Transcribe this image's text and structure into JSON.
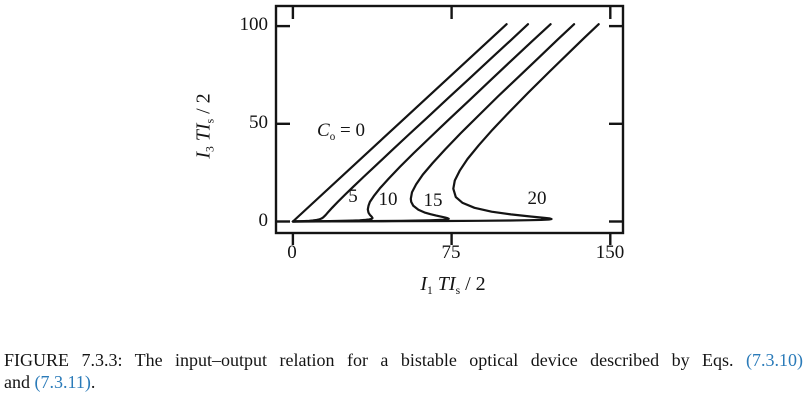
{
  "colors": {
    "ink": "#141414",
    "link": "#2b7bb9"
  },
  "chart_data": {
    "type": "line",
    "title": "",
    "xlabel": "I_1 / (T I_s / 2)",
    "ylabel": "I_3 / (T I_s / 2)",
    "xlabel_parts": {
      "num_base": "I",
      "num_sub": "1",
      "den_base": "TI",
      "den_sub": "s",
      "den_tail": " / 2"
    },
    "ylabel_parts": {
      "num_base": "I",
      "num_sub": "3",
      "den_base": "TI",
      "den_sub": "s",
      "den_tail": " / 2"
    },
    "xlim": [
      -8,
      156
    ],
    "ylim": [
      -5.9,
      110.3
    ],
    "xticks": [
      0,
      75,
      150
    ],
    "yticks": [
      0,
      50,
      100
    ],
    "xtick_labels": [
      "0",
      "75",
      "150"
    ],
    "ytick_labels": [
      "0",
      "50",
      "100"
    ],
    "grid": false,
    "legend_position": "inline-curve-labels",
    "curve_label_head": {
      "base": "C",
      "sub": "o",
      "eq": "= 0"
    },
    "curve_labels": [
      "5",
      "10",
      "15",
      "20"
    ],
    "series": [
      {
        "name": "C0 = 0",
        "C0": 0,
        "points": [
          [
            0,
            0
          ],
          [
            50.5,
            50.5
          ],
          [
            101,
            101
          ]
        ]
      },
      {
        "name": "C0 = 5",
        "C0": 5,
        "points": [
          [
            0,
            0
          ],
          [
            1.7,
            0.05
          ],
          [
            3.1,
            0.1
          ],
          [
            5.3,
            0.2
          ],
          [
            7.7,
            0.35
          ],
          [
            9.4,
            0.5
          ],
          [
            11.2,
            0.75
          ],
          [
            12.3,
            1
          ],
          [
            13.5,
            1.5
          ],
          [
            14.2,
            2
          ],
          [
            15.2,
            3
          ],
          [
            16,
            4
          ],
          [
            16.8,
            5
          ],
          [
            18.5,
            7
          ],
          [
            21.2,
            10
          ],
          [
            24.9,
            14
          ],
          [
            28.7,
            18
          ],
          [
            33.6,
            23
          ],
          [
            39.5,
            29
          ],
          [
            46.4,
            36
          ],
          [
            54.3,
            44
          ],
          [
            63.3,
            53
          ],
          [
            73.2,
            63
          ],
          [
            83.2,
            73
          ],
          [
            93.2,
            83
          ],
          [
            103.2,
            93
          ],
          [
            111.1,
            101
          ]
        ]
      },
      {
        "name": "C0 = 10",
        "C0": 10,
        "points": [
          [
            0,
            0
          ],
          [
            5.5,
            0.05
          ],
          [
            10.2,
            0.1
          ],
          [
            17.4,
            0.2
          ],
          [
            22.7,
            0.3
          ],
          [
            28.1,
            0.45
          ],
          [
            31.5,
            0.6
          ],
          [
            34.4,
            0.8
          ],
          [
            36,
            1
          ],
          [
            37.2,
            1.3
          ],
          [
            37.6,
            1.75
          ],
          [
            37.2,
            2.5
          ],
          [
            36.3,
            3.5
          ],
          [
            35.7,
            4.5
          ],
          [
            35.4,
            6.2
          ],
          [
            35.7,
            8
          ],
          [
            36.4,
            10
          ],
          [
            38.2,
            13
          ],
          [
            41.1,
            17
          ],
          [
            45.3,
            22
          ],
          [
            50.6,
            28
          ],
          [
            57.1,
            35
          ],
          [
            64.8,
            43
          ],
          [
            73.5,
            52
          ],
          [
            83.3,
            62
          ],
          [
            93.1,
            72
          ],
          [
            102.9,
            82
          ],
          [
            112.8,
            92
          ],
          [
            121.8,
            101
          ]
        ]
      },
      {
        "name": "C0 = 15",
        "C0": 15,
        "points": [
          [
            0,
            0
          ],
          [
            11.7,
            0.05
          ],
          [
            21.4,
            0.1
          ],
          [
            29.6,
            0.15
          ],
          [
            42.3,
            0.25
          ],
          [
            51.3,
            0.35
          ],
          [
            57.9,
            0.45
          ],
          [
            64.6,
            0.6
          ],
          [
            68.7,
            0.75
          ],
          [
            71.2,
            0.9
          ],
          [
            72.9,
            1.1
          ],
          [
            73.6,
            1.4
          ],
          [
            73.1,
            1.7
          ],
          [
            72,
            2
          ],
          [
            69.9,
            2.5
          ],
          [
            67.7,
            3
          ],
          [
            65,
            3.7
          ],
          [
            62.5,
            4.5
          ],
          [
            59.3,
            6
          ],
          [
            56.9,
            8
          ],
          [
            55.9,
            10
          ],
          [
            55.7,
            11.6
          ],
          [
            56.3,
            15
          ],
          [
            58.2,
            19
          ],
          [
            61.4,
            24
          ],
          [
            66.1,
            30
          ],
          [
            72,
            37
          ],
          [
            79.1,
            45
          ],
          [
            87.5,
            54
          ],
          [
            96.9,
            64
          ],
          [
            106.6,
            74
          ],
          [
            116.3,
            84
          ],
          [
            125,
            93
          ],
          [
            132.9,
            101
          ]
        ]
      },
      {
        "name": "C0 = 20",
        "C0": 20,
        "points": [
          [
            0,
            0
          ],
          [
            20.1,
            0.05
          ],
          [
            36.8,
            0.1
          ],
          [
            50.7,
            0.15
          ],
          [
            72.3,
            0.25
          ],
          [
            87.5,
            0.35
          ],
          [
            102.7,
            0.5
          ],
          [
            111.9,
            0.65
          ],
          [
            117.3,
            0.8
          ],
          [
            121,
            1
          ],
          [
            122.2,
            1.25
          ],
          [
            121.5,
            1.5
          ],
          [
            119.4,
            1.8
          ],
          [
            111.7,
            2.6
          ],
          [
            103,
            3.6
          ],
          [
            93.9,
            5
          ],
          [
            85.8,
            7
          ],
          [
            80.2,
            9.5
          ],
          [
            77,
            12.5
          ],
          [
            75.8,
            16.8
          ],
          [
            76.5,
            21
          ],
          [
            78.8,
            26
          ],
          [
            82.5,
            32
          ],
          [
            87.8,
            39
          ],
          [
            94.3,
            47
          ],
          [
            102.2,
            56
          ],
          [
            111.3,
            66
          ],
          [
            121.5,
            77
          ],
          [
            132,
            88
          ],
          [
            137.7,
            94
          ],
          [
            144.5,
            101
          ]
        ]
      }
    ]
  },
  "caption": {
    "label": "FIGURE 7.3.3:",
    "text_before": "The input–output relation for a bistable optical device described by Eqs.",
    "ref1": "(7.3.10)",
    "text_between": "and",
    "ref2": "(7.3.11)",
    "text_after": "."
  }
}
